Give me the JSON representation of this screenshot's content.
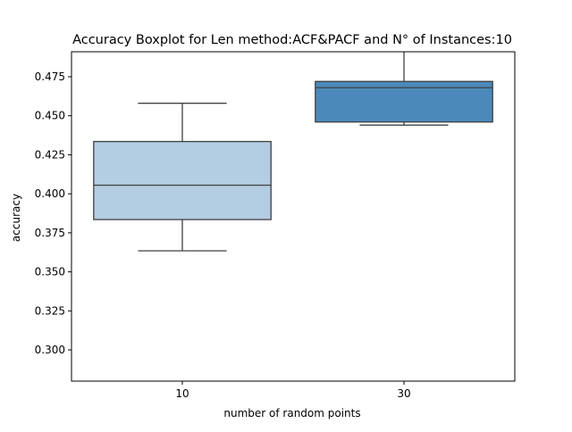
{
  "chart_data": {
    "type": "boxplot",
    "title": "Accuracy Boxplot for Len method:ACF&PACF and N° of Instances:10",
    "xlabel": "number of random points",
    "ylabel": "accuracy",
    "ylim": [
      0.28,
      0.491
    ],
    "yticks": [
      0.3,
      0.325,
      0.35,
      0.375,
      0.4,
      0.425,
      0.45,
      0.475
    ],
    "ytick_labels": [
      "0.300",
      "0.325",
      "0.350",
      "0.375",
      "0.400",
      "0.425",
      "0.450",
      "0.475"
    ],
    "categories": [
      "10",
      "30"
    ],
    "boxes": [
      {
        "category": "10",
        "whisker_low": 0.3635,
        "q1": 0.3835,
        "median": 0.4055,
        "q3": 0.4335,
        "whisker_high": 0.458,
        "color": "#b3cde3"
      },
      {
        "category": "30",
        "whisker_low": 0.444,
        "q1": 0.446,
        "median": 0.468,
        "q3": 0.472,
        "whisker_high": 0.496,
        "color": "#4a89b9"
      }
    ],
    "grid": false,
    "colors": {
      "line": "#404040",
      "axis": "#000000"
    }
  }
}
